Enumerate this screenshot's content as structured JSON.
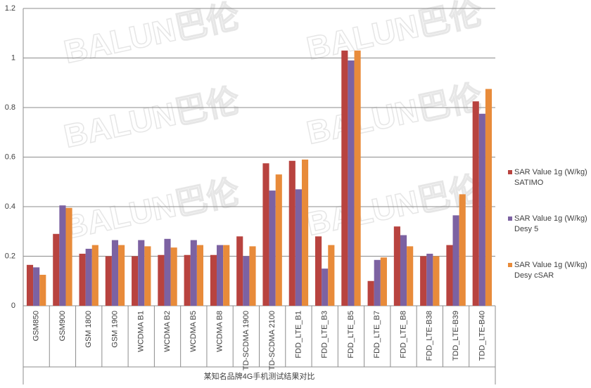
{
  "chart_data": {
    "type": "bar",
    "watermark": "BALUN巴伦",
    "x_label": "某知名品牌4G手机测试结果对比",
    "categories": [
      "GSM850",
      "GSM900",
      "GSM 1800",
      "GSM 1900",
      "WCDMA B1",
      "WCDMA B2",
      "WCDMA B5",
      "WCDMA B8",
      "TD-SCDMA 1900",
      "TD-SCDMA 2100",
      "FDD_LTE_B1",
      "FDD_LTE_B3",
      "FDD_LTE_B5",
      "FDD_LTE_B7",
      "FDD_LTE_B8",
      "FDD_LTE-B38",
      "TDD_LTE-B39",
      "TDD_LTE-B40"
    ],
    "series": [
      {
        "name": "SAR Value 1g (W/kg) SATIMO",
        "color": "#b8433f",
        "values": [
          0.165,
          0.29,
          0.21,
          0.2,
          0.2,
          0.205,
          0.205,
          0.205,
          0.28,
          0.575,
          0.585,
          0.28,
          1.03,
          0.1,
          0.32,
          0.2,
          0.245,
          0.825
        ]
      },
      {
        "name": "SAR Value 1g (W/kg) Desy 5",
        "color": "#7c62a2",
        "values": [
          0.155,
          0.405,
          0.23,
          0.265,
          0.265,
          0.27,
          0.265,
          0.245,
          0.2,
          0.465,
          0.47,
          0.15,
          0.99,
          0.185,
          0.285,
          0.21,
          0.365,
          0.775
        ]
      },
      {
        "name": "SAR Value 1g (W/kg) Desy cSAR",
        "color": "#e88b3a",
        "values": [
          0.125,
          0.395,
          0.245,
          0.245,
          0.24,
          0.235,
          0.245,
          0.245,
          0.24,
          0.53,
          0.59,
          0.245,
          1.03,
          0.195,
          0.24,
          0.2,
          0.45,
          0.875
        ]
      }
    ],
    "ylim": [
      0,
      1.2
    ],
    "yticks": [
      0,
      0.2,
      0.4,
      0.6,
      0.8,
      1,
      1.2
    ],
    "grid": true,
    "legend": "right"
  }
}
